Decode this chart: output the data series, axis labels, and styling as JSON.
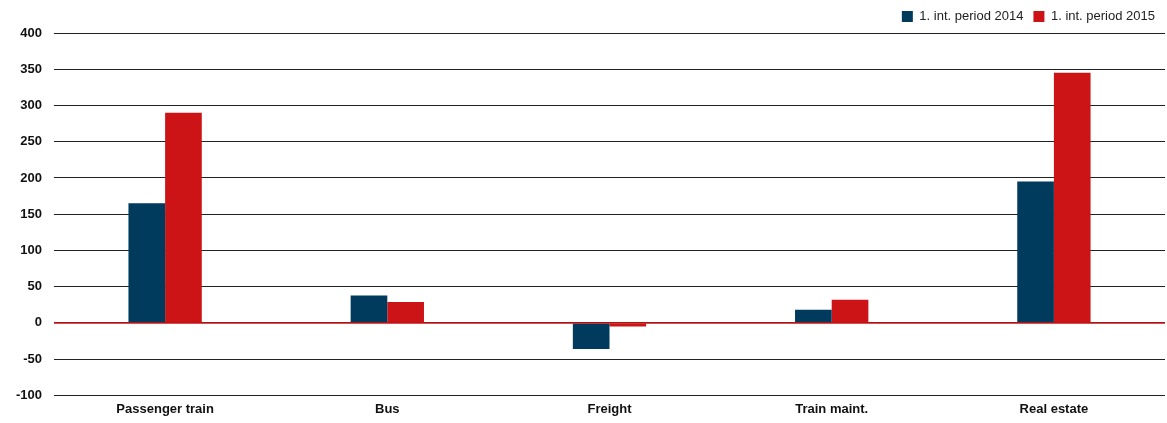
{
  "chart_data": {
    "type": "bar",
    "categories": [
      "Passenger train",
      "Bus",
      "Freight",
      "Train maint.",
      "Real estate"
    ],
    "series": [
      {
        "name": "1. int. period 2014",
        "color": "#003a5c",
        "values": [
          165,
          38,
          -36,
          18,
          195
        ]
      },
      {
        "name": "1. int. period 2015",
        "color": "#cc1417",
        "values": [
          290,
          29,
          -5,
          32,
          345
        ]
      }
    ],
    "ylim": [
      -100,
      400
    ],
    "yticks": [
      -100,
      -50,
      0,
      50,
      100,
      150,
      200,
      250,
      300,
      350,
      400
    ],
    "grid": "y",
    "legend": "top right",
    "ref_lines": [
      {
        "axis": "y",
        "value": 0,
        "color": "#cc1417"
      }
    ]
  }
}
